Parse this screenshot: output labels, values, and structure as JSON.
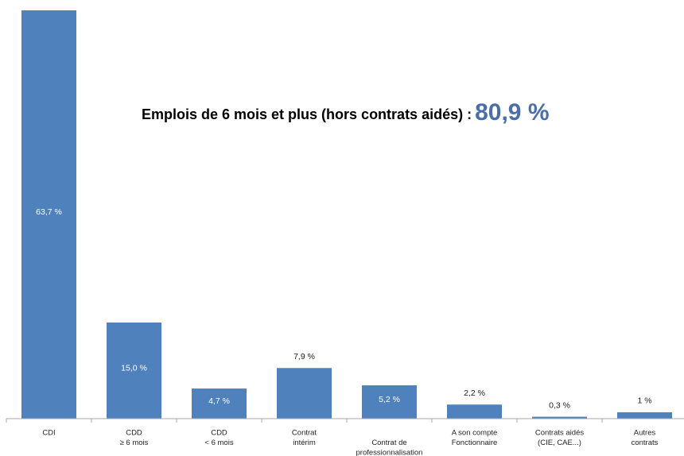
{
  "chart_data": {
    "type": "bar",
    "annotation": {
      "text": "Emplois de 6 mois et plus (hors contrats aidés) :",
      "highlight": "80,9 %"
    },
    "categories": [
      [
        "CDI"
      ],
      [
        "CDD",
        "≥ 6 mois"
      ],
      [
        "CDD",
        "< 6 mois"
      ],
      [
        "Contrat",
        "intérim"
      ],
      [
        "",
        "Contrat de",
        "professionnalisation"
      ],
      [
        "A son compte",
        "Fonctionnaire"
      ],
      [
        "Contrats aidés",
        "(CIE, CAE...)"
      ],
      [
        "Autres",
        "contrats"
      ]
    ],
    "values": [
      63.7,
      15.0,
      4.7,
      7.9,
      5.2,
      2.2,
      0.3,
      1
    ],
    "value_labels": [
      "63,7 %",
      "15,0 %",
      "4,7 %",
      "7,9 %",
      "5,2 %",
      "2,2 %",
      "0,3 %",
      "1 %"
    ],
    "color": "#4f81bd",
    "ylim": [
      0,
      63.7
    ]
  }
}
